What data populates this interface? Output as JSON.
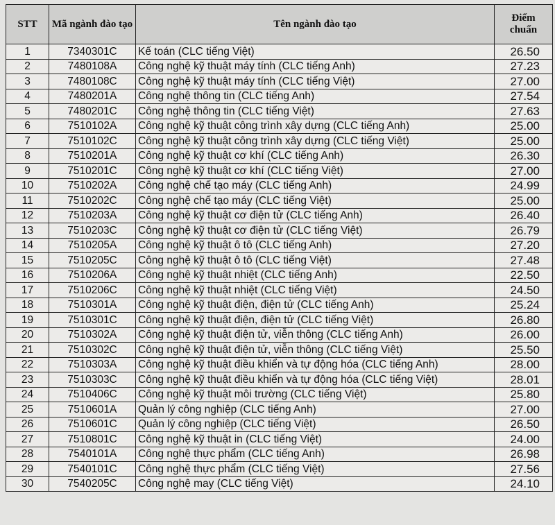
{
  "headers": {
    "stt": "STT",
    "code": "Mã ngành đào tạo",
    "name": "Tên ngành đào tạo",
    "score": "Điểm chuẩn"
  },
  "rows": [
    {
      "stt": "1",
      "code": "7340301C",
      "name": "Kế toán (CLC tiếng Việt)",
      "score": "26.50"
    },
    {
      "stt": "2",
      "code": "7480108A",
      "name": "Công nghệ kỹ thuật máy tính (CLC tiếng Anh)",
      "score": "27.23"
    },
    {
      "stt": "3",
      "code": "7480108C",
      "name": "Công nghệ kỹ thuật máy tính (CLC tiếng Việt)",
      "score": "27.00"
    },
    {
      "stt": "4",
      "code": "7480201A",
      "name": "Công nghệ thông tin (CLC tiếng Anh)",
      "score": "27.54"
    },
    {
      "stt": "5",
      "code": "7480201C",
      "name": "Công nghệ thông tin (CLC tiếng Việt)",
      "score": "27.63"
    },
    {
      "stt": "6",
      "code": "7510102A",
      "name": "Công nghệ kỹ thuật công trình xây dựng (CLC tiếng Anh)",
      "score": "25.00"
    },
    {
      "stt": "7",
      "code": "7510102C",
      "name": "Công nghệ kỹ thuật công trình xây dựng (CLC tiếng Việt)",
      "score": "25.00"
    },
    {
      "stt": "8",
      "code": "7510201A",
      "name": "Công nghệ kỹ thuật cơ khí (CLC tiếng Anh)",
      "score": "26.30"
    },
    {
      "stt": "9",
      "code": "7510201C",
      "name": "Công nghệ kỹ thuật cơ khí (CLC tiếng Việt)",
      "score": "27.00"
    },
    {
      "stt": "10",
      "code": "7510202A",
      "name": "Công nghệ chế tạo máy (CLC tiếng Anh)",
      "score": "24.99"
    },
    {
      "stt": "11",
      "code": "7510202C",
      "name": "Công nghệ chế tạo máy (CLC tiếng Việt)",
      "score": "25.00"
    },
    {
      "stt": "12",
      "code": "7510203A",
      "name": "Công nghệ kỹ thuật cơ điện tử (CLC tiếng Anh)",
      "score": "26.40"
    },
    {
      "stt": "13",
      "code": "7510203C",
      "name": "Công nghệ kỹ thuật cơ điện tử (CLC tiếng Việt)",
      "score": "26.79"
    },
    {
      "stt": "14",
      "code": "7510205A",
      "name": "Công nghệ kỹ thuật ô tô (CLC tiếng Anh)",
      "score": "27.20"
    },
    {
      "stt": "15",
      "code": "7510205C",
      "name": "Công nghệ kỹ thuật ô tô (CLC tiếng Việt)",
      "score": "27.48"
    },
    {
      "stt": "16",
      "code": "7510206A",
      "name": "Công nghệ kỹ thuật nhiệt (CLC tiếng Anh)",
      "score": "22.50"
    },
    {
      "stt": "17",
      "code": "7510206C",
      "name": "Công nghệ kỹ thuật nhiệt (CLC tiếng Việt)",
      "score": "24.50"
    },
    {
      "stt": "18",
      "code": "7510301A",
      "name": "Công nghệ kỹ thuật điện, điện tử (CLC tiếng Anh)",
      "score": "25.24"
    },
    {
      "stt": "19",
      "code": "7510301C",
      "name": "Công nghệ kỹ thuật điện, điện tử (CLC tiếng Việt)",
      "score": "26.80"
    },
    {
      "stt": "20",
      "code": "7510302A",
      "name": "Công nghệ kỹ thuật điện tử, viễn thông (CLC tiếng Anh)",
      "score": "26.00"
    },
    {
      "stt": "21",
      "code": "7510302C",
      "name": "Công nghệ kỹ thuật điện tử, viễn thông (CLC tiếng Việt)",
      "score": "25.50"
    },
    {
      "stt": "22",
      "code": "7510303A",
      "name": "Công nghệ kỹ thuật điều khiển và tự động hóa (CLC tiếng Anh)",
      "score": "28.00"
    },
    {
      "stt": "23",
      "code": "7510303C",
      "name": "Công nghệ kỹ thuật điều khiển và tự động hóa (CLC tiếng Việt)",
      "score": "28.01"
    },
    {
      "stt": "24",
      "code": "7510406C",
      "name": "Công nghệ kỹ thuật môi trường (CLC tiếng Việt)",
      "score": "25.80"
    },
    {
      "stt": "25",
      "code": "7510601A",
      "name": "Quản lý công nghiệp (CLC tiếng Anh)",
      "score": "27.00"
    },
    {
      "stt": "26",
      "code": "7510601C",
      "name": "Quản lý công nghiệp (CLC tiếng Việt)",
      "score": "26.50"
    },
    {
      "stt": "27",
      "code": "7510801C",
      "name": "Công nghệ kỹ thuật in (CLC tiếng Việt)",
      "score": "24.00"
    },
    {
      "stt": "28",
      "code": "7540101A",
      "name": "Công nghệ thực phẩm (CLC tiếng Anh)",
      "score": "26.98"
    },
    {
      "stt": "29",
      "code": "7540101C",
      "name": "Công nghệ thực phẩm (CLC tiếng Việt)",
      "score": "27.56"
    },
    {
      "stt": "30",
      "code": "7540205C",
      "name": "Công nghệ may (CLC tiếng Việt)",
      "score": "24.10"
    }
  ]
}
